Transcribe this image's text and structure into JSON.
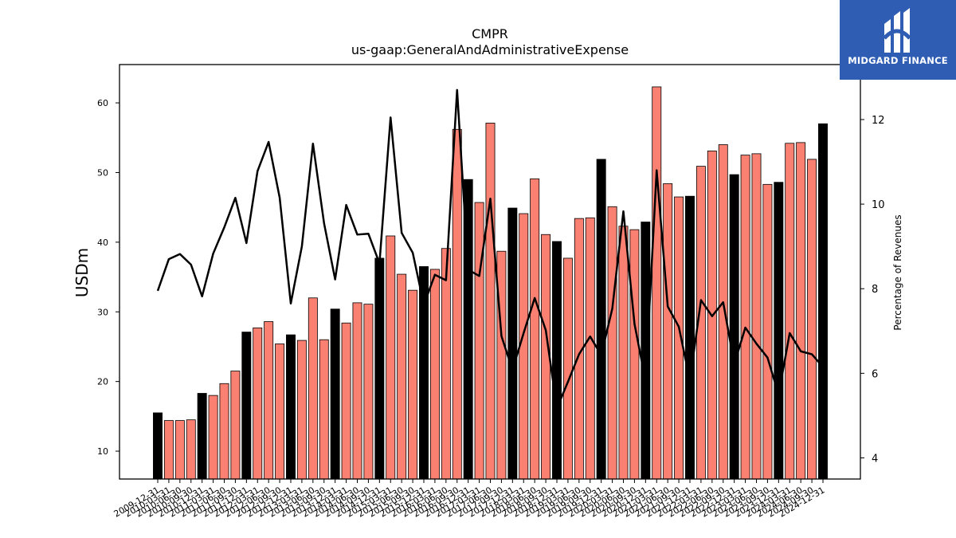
{
  "chart_data": {
    "type": "bar",
    "title": "CMPR",
    "subtitle": "us-gaap:GeneralAndAdministrativeExpense",
    "ylabel": "USDm",
    "y2label": "Percentage of Revenues",
    "ylim": [
      6,
      65.5
    ],
    "y2lim": [
      3.5,
      13.3
    ],
    "yticks": [
      10,
      20,
      30,
      40,
      50,
      60
    ],
    "y2ticks": [
      4,
      6,
      8,
      10,
      12
    ],
    "categories": [
      "2009-12-31",
      "2010-03-31",
      "2010-06-30",
      "2010-09-30",
      "2010-12-31",
      "2011-03-31",
      "2011-06-30",
      "2011-09-30",
      "2011-12-31",
      "2012-03-31",
      "2012-06-30",
      "2012-09-30",
      "2012-12-31",
      "2013-03-31",
      "2013-06-30",
      "2013-09-30",
      "2013-12-31",
      "2014-03-31",
      "2014-06-30",
      "2014-09-30",
      "2014-12-31",
      "2015-03-31",
      "2015-06-30",
      "2015-09-30",
      "2015-12-31",
      "2016-03-31",
      "2016-06-30",
      "2016-09-30",
      "2016-12-31",
      "2017-03-31",
      "2017-06-30",
      "2017-09-30",
      "2017-12-31",
      "2018-03-31",
      "2018-06-30",
      "2018-09-30",
      "2018-12-31",
      "2019-03-31",
      "2019-06-30",
      "2019-09-30",
      "2019-12-31",
      "2020-03-31",
      "2020-06-30",
      "2020-09-30",
      "2020-12-31",
      "2021-03-31",
      "2021-06-30",
      "2021-09-30",
      "2021-12-31",
      "2022-03-31",
      "2022-06-30",
      "2022-09-30",
      "2022-12-31",
      "2023-03-31",
      "2023-06-30",
      "2023-09-30",
      "2023-12-31",
      "2024-03-31",
      "2024-06-30",
      "2024-09-30",
      "2024-12-31"
    ],
    "values": [
      15.5,
      14.4,
      14.4,
      14.5,
      18.3,
      18,
      19.7,
      21.5,
      27.1,
      27.7,
      28.6,
      25.4,
      26.7,
      25.9,
      32,
      26,
      30.4,
      28.4,
      31.3,
      31.1,
      37.7,
      40.9,
      35.4,
      33.1,
      36.5,
      36.1,
      39.1,
      56.2,
      49,
      45.7,
      57.1,
      38.7,
      44.9,
      44.1,
      49.1,
      41.1,
      40.1,
      37.7,
      43.4,
      43.5,
      51.9,
      45.1,
      42.3,
      41.8,
      42.9,
      62.3,
      48.4,
      46.5,
      46.6,
      50.9,
      53.1,
      54,
      49.7,
      52.5,
      52.7,
      48.3,
      48.6,
      54.2,
      54.3,
      51.9,
      57
    ],
    "highlight_color": "#000000",
    "bar_color": "#fa8072",
    "line": {
      "name": "Percentage of Revenues",
      "values": [
        7.95,
        8.7,
        8.82,
        8.57,
        7.82,
        8.83,
        9.45,
        10.15,
        9.08,
        10.78,
        11.47,
        10.15,
        7.65,
        9,
        11.43,
        9.55,
        8.22,
        9.98,
        9.28,
        9.3,
        8.6,
        12.05,
        9.32,
        8.85,
        7.62,
        8.33,
        8.2,
        12.7,
        8.45,
        8.3,
        10.13,
        6.88,
        6.08,
        6.95,
        7.78,
        7.02,
        5.17,
        5.8,
        6.45,
        6.87,
        6.43,
        7.53,
        9.83,
        7.17,
        5.82,
        10.8,
        7.58,
        7.1,
        5.83,
        7.73,
        7.35,
        7.68,
        6.22,
        7.08,
        6.7,
        6.37,
        5.5,
        6.95,
        6.52,
        6.45,
        6.15
      ]
    }
  },
  "brand": {
    "name": "MIDGARD FINANCE",
    "background": "#2f5db4"
  }
}
